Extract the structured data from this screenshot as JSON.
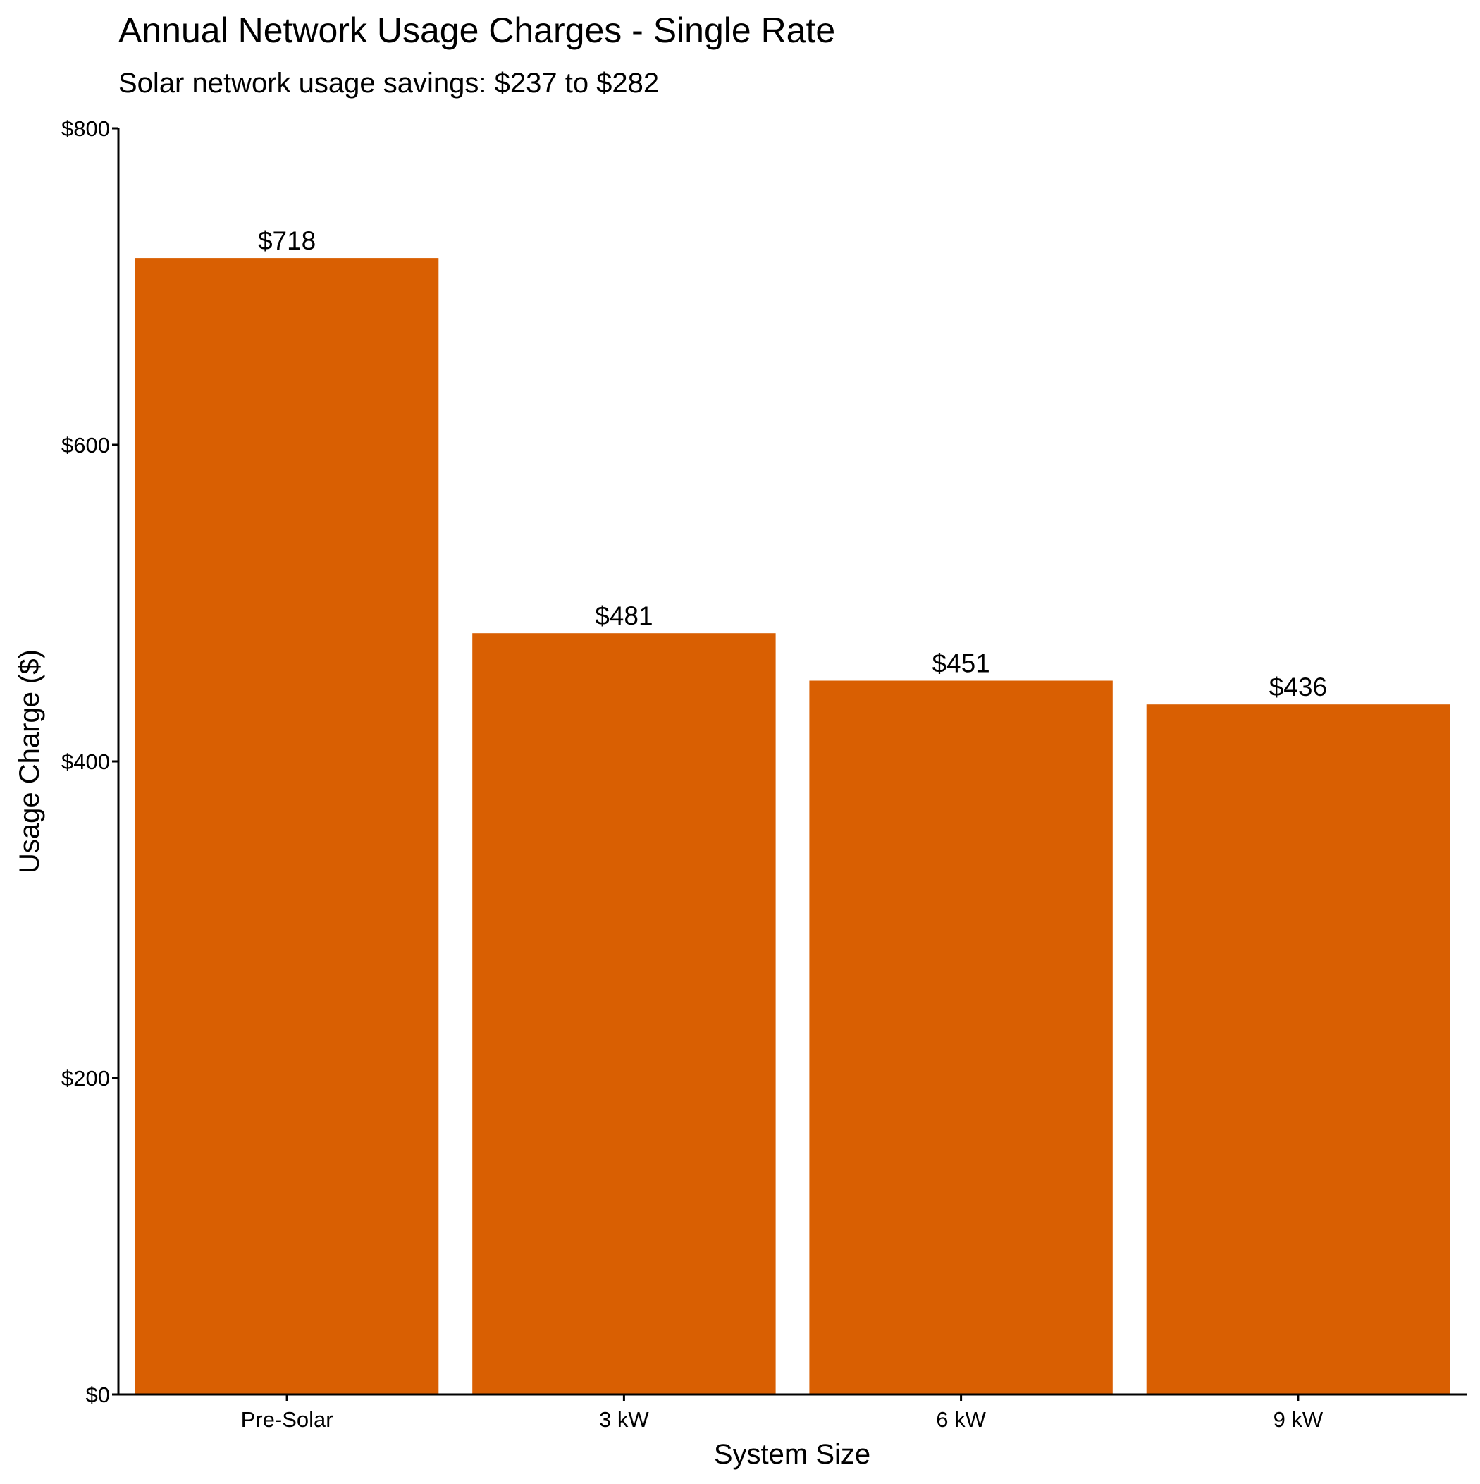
{
  "chart_data": {
    "type": "bar",
    "title": "Annual Network Usage Charges - Single Rate",
    "subtitle": "Solar network usage savings: $237 to $282",
    "xlabel": "System Size",
    "ylabel": "Usage Charge ($)",
    "categories": [
      "Pre-Solar",
      "3 kW",
      "6 kW",
      "9 kW"
    ],
    "values": [
      718,
      481,
      451,
      436
    ],
    "data_labels": [
      "$718",
      "$481",
      "$451",
      "$436"
    ],
    "ylim": [
      0,
      800
    ],
    "yticks": [
      0,
      200,
      400,
      600,
      800
    ],
    "ytick_labels": [
      "$0",
      "$200",
      "$400",
      "$600",
      "$800"
    ],
    "bar_color": "#D95F02",
    "grid": false,
    "legend": "none"
  }
}
